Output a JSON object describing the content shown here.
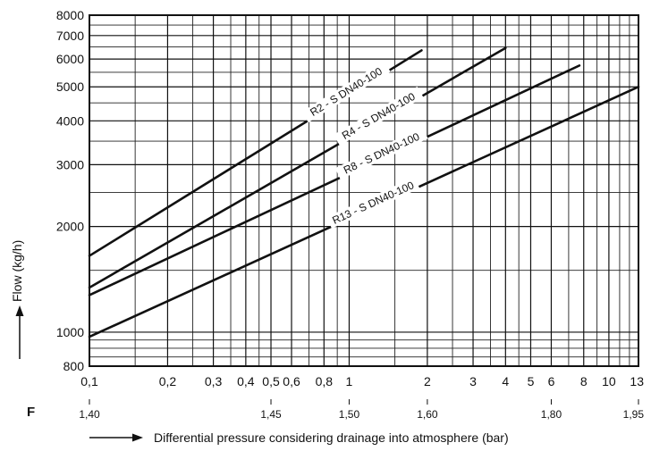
{
  "chart_data": {
    "type": "line",
    "title": "",
    "xscale": "log",
    "yscale": "log",
    "xlim": [
      0.1,
      13
    ],
    "ylim": [
      800,
      8000
    ],
    "grid": true,
    "ylabel": "Flow (kg/h)",
    "xlabel": "Differential pressure considering drainage into atmosphere (bar)",
    "x_ticks": [
      {
        "value": 0.1,
        "label": "0,1"
      },
      {
        "value": 0.2,
        "label": "0,2"
      },
      {
        "value": 0.3,
        "label": "0,3"
      },
      {
        "value": 0.4,
        "label": "0,4"
      },
      {
        "value": 0.5,
        "label": "0,5"
      },
      {
        "value": 0.6,
        "label": "0,6"
      },
      {
        "value": 0.8,
        "label": "0,8"
      },
      {
        "value": 1,
        "label": "1"
      },
      {
        "value": 2,
        "label": "2"
      },
      {
        "value": 3,
        "label": "3"
      },
      {
        "value": 4,
        "label": "4"
      },
      {
        "value": 5,
        "label": "5"
      },
      {
        "value": 6,
        "label": "6"
      },
      {
        "value": 8,
        "label": "8"
      },
      {
        "value": 10,
        "label": "10"
      },
      {
        "value": 13,
        "label": "13"
      }
    ],
    "y_ticks": [
      {
        "value": 800,
        "label": "800"
      },
      {
        "value": 1000,
        "label": "1000"
      },
      {
        "value": 2000,
        "label": "2000"
      },
      {
        "value": 3000,
        "label": "3000"
      },
      {
        "value": 4000,
        "label": "4000"
      },
      {
        "value": 5000,
        "label": "5000"
      },
      {
        "value": 6000,
        "label": "6000"
      },
      {
        "value": 7000,
        "label": "7000"
      },
      {
        "value": 8000,
        "label": "8000"
      }
    ],
    "f_scale": {
      "label": "F",
      "ticks": [
        {
          "value": 0.1,
          "label": "1,40"
        },
        {
          "value": 0.5,
          "label": "1,45"
        },
        {
          "value": 1,
          "label": "1,50"
        },
        {
          "value": 2,
          "label": "1,60"
        },
        {
          "value": 6,
          "label": "1,80"
        },
        {
          "value": 13,
          "label": "1,95"
        }
      ]
    },
    "series": [
      {
        "name": "R2 - S DN40-100",
        "x": [
          0.1,
          1.9
        ],
        "y": [
          1650,
          6350
        ]
      },
      {
        "name": "R4 - S DN40-100",
        "x": [
          0.1,
          4.0
        ],
        "y": [
          1340,
          6450
        ]
      },
      {
        "name": "R8 - S DN40-100",
        "x": [
          0.1,
          7.7
        ],
        "y": [
          1275,
          5750
        ]
      },
      {
        "name": "R13 - S DN40-100",
        "x": [
          0.1,
          13
        ],
        "y": [
          970,
          5000
        ]
      }
    ]
  }
}
